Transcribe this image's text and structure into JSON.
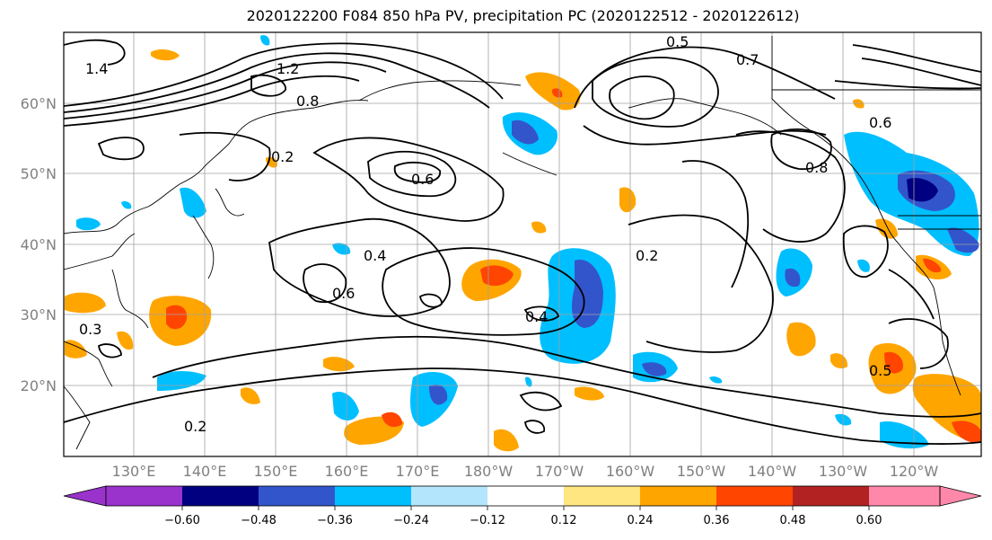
{
  "title": "2020122200 F084 850 hPa PV, precipitation PC (2020122512 - 2020122612)",
  "map": {
    "lat_labels": [
      "60°N",
      "50°N",
      "40°N",
      "30°N",
      "20°N"
    ],
    "lon_labels": [
      "130°E",
      "140°E",
      "150°E",
      "160°E",
      "170°E",
      "180°W",
      "170°W",
      "160°W",
      "150°W",
      "140°W",
      "130°W",
      "120°W"
    ],
    "contour_labels": [
      "1.4",
      "1.2",
      "0.8",
      "0.5",
      "0.6",
      "0.2",
      "0.4",
      "0.6",
      "0.3",
      "0.4",
      "0.2",
      "0.5",
      "0.7",
      "0.8",
      "0.6",
      "0.2"
    ],
    "colors": {
      "purple": "#9933cc",
      "navy": "#000080",
      "blue": "#3355cc",
      "deepskyblue": "#00bfff",
      "lightblue": "#b3e5fc",
      "white": "#ffffff",
      "yellow": "#ffe680",
      "orange": "#ffa500",
      "orangered": "#ff4500",
      "firebrick": "#b22222",
      "pink": "#ff88aa"
    }
  },
  "colorbar": {
    "ticks": [
      "−0.60",
      "−0.48",
      "−0.36",
      "−0.24",
      "−0.12",
      "0.12",
      "0.24",
      "0.36",
      "0.48",
      "0.60"
    ],
    "colors": [
      "#9933cc",
      "#000080",
      "#3355cc",
      "#00bfff",
      "#b3e5fc",
      "#ffffff",
      "#ffe680",
      "#ffa500",
      "#ff4500",
      "#b22222",
      "#ff88aa"
    ]
  }
}
